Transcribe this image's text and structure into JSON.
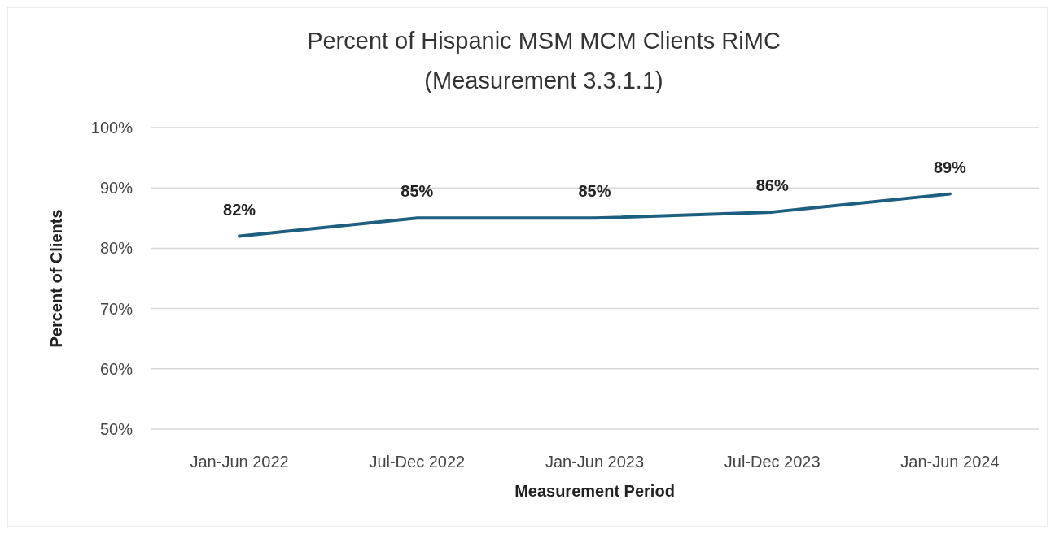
{
  "chart_data": {
    "type": "line",
    "title": "Percent of Hispanic MSM MCM Clients RiMC",
    "subtitle": "(Measurement 3.3.1.1)",
    "xlabel": "Measurement Period",
    "ylabel": "Percent of Clients",
    "categories": [
      "Jan-Jun 2022",
      "Jul-Dec 2022",
      "Jan-Jun 2023",
      "Jul-Dec 2023",
      "Jan-Jun 2024"
    ],
    "series": [
      {
        "color": "#1d5f80",
        "values": [
          82,
          85,
          85,
          86,
          89
        ],
        "value_labels": [
          "82%",
          "85%",
          "85%",
          "86%",
          "89%"
        ]
      }
    ],
    "ylim": [
      50,
      100
    ],
    "yticks": [
      {
        "value": 50,
        "label": "50%"
      },
      {
        "value": 60,
        "label": "60%"
      },
      {
        "value": 70,
        "label": "70%"
      },
      {
        "value": 80,
        "label": "80%"
      },
      {
        "value": 90,
        "label": "90%"
      },
      {
        "value": 100,
        "label": "100%"
      }
    ],
    "grid": "y",
    "marker": "none",
    "line_style": "solid"
  }
}
